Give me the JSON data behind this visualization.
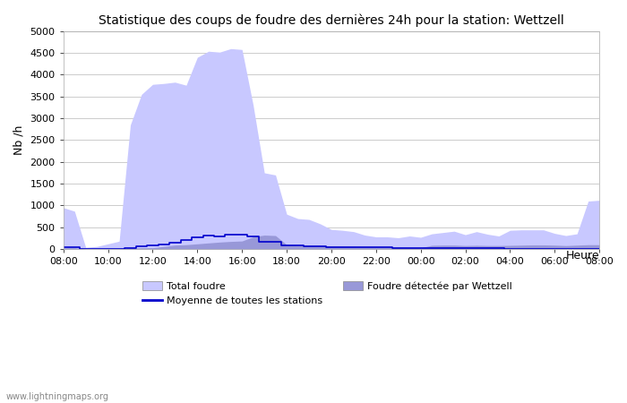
{
  "title": "Statistique des coups de foudre des dernières 24h pour la station: Wettzell",
  "ylabel": "Nb /h",
  "xlabel": "Heure",
  "watermark": "www.lightningmaps.org",
  "ylim": [
    0,
    5000
  ],
  "yticks": [
    0,
    500,
    1000,
    1500,
    2000,
    2500,
    3000,
    3500,
    4000,
    4500,
    5000
  ],
  "xtick_labels": [
    "08:00",
    "10:00",
    "12:00",
    "14:00",
    "16:00",
    "18:00",
    "20:00",
    "22:00",
    "00:00",
    "02:00",
    "04:00",
    "06:00",
    "08:00"
  ],
  "total_foudre_color": "#c8c8ff",
  "wettzell_color": "#9898d8",
  "moyenne_color": "#0000cc",
  "background_color": "#ffffff",
  "grid_color": "#cccccc",
  "n_hours": 24,
  "total_foudre": [
    950,
    870,
    40,
    60,
    120,
    180,
    2850,
    3550,
    3780,
    3800,
    3830,
    3760,
    4400,
    4540,
    4520,
    4600,
    4580,
    3300,
    1750,
    1700,
    800,
    700,
    680,
    580,
    450,
    430,
    400,
    320,
    280,
    280,
    260,
    300,
    270,
    350,
    380,
    410,
    330,
    400,
    340,
    300,
    430,
    440,
    440,
    440,
    360,
    310,
    350,
    1100,
    1120
  ],
  "wettzell_foudre": [
    30,
    30,
    5,
    5,
    10,
    10,
    20,
    30,
    30,
    60,
    90,
    100,
    120,
    140,
    160,
    175,
    185,
    280,
    320,
    310,
    100,
    80,
    80,
    75,
    70,
    65,
    60,
    55,
    50,
    45,
    40,
    35,
    30,
    85,
    90,
    90,
    80,
    85,
    80,
    80,
    85,
    90,
    95,
    95,
    90,
    80,
    90,
    100,
    100
  ],
  "moyenne": [
    40,
    35,
    5,
    5,
    5,
    10,
    30,
    60,
    90,
    110,
    150,
    200,
    260,
    310,
    300,
    330,
    340,
    280,
    175,
    160,
    85,
    75,
    70,
    60,
    50,
    50,
    45,
    45,
    40,
    40,
    30,
    20,
    20,
    20,
    15,
    15,
    15,
    15,
    15,
    15,
    10,
    10,
    10,
    10,
    10,
    10,
    10,
    10,
    10
  ],
  "legend_total_label": "Total foudre",
  "legend_wettzell_label": "Foudre détectée par Wettzell",
  "legend_moyenne_label": "Moyenne de toutes les stations"
}
